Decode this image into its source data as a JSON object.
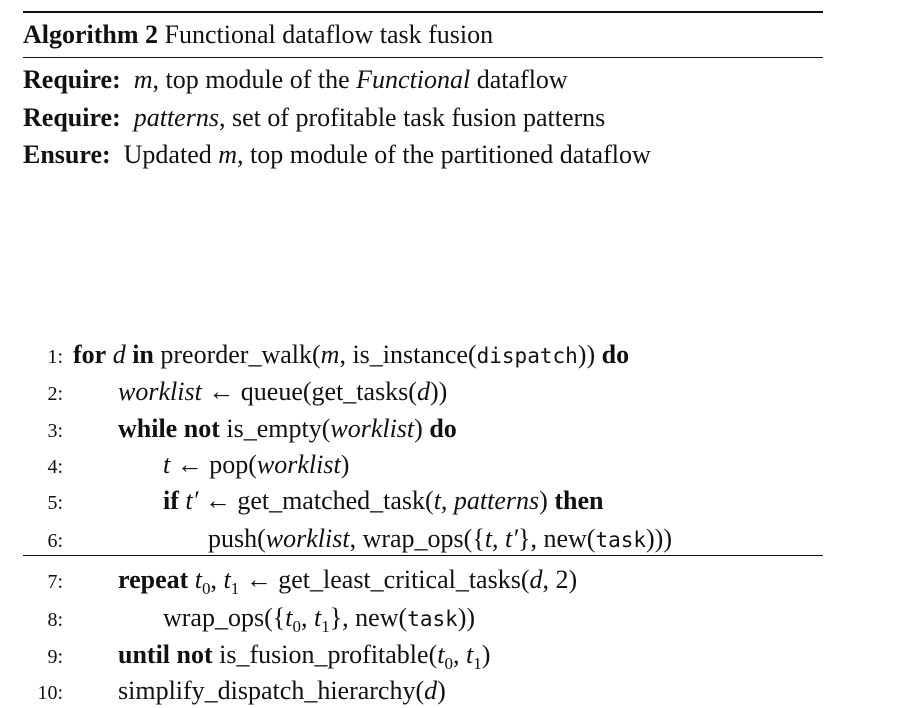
{
  "algorithm": {
    "label": "Algorithm 2",
    "title": "Functional dataflow task fusion"
  },
  "preamble": {
    "require1_kw": "Require:",
    "require1_var": "m",
    "require1_text_a": ", top module of the ",
    "require1_text_em": "Functional",
    "require1_text_b": " dataflow",
    "require2_kw": "Require:",
    "require2_var": "patterns",
    "require2_text": ", set of profitable task fusion patterns",
    "ensure_kw": "Ensure:",
    "ensure_text_a": "Updated ",
    "ensure_var": "m",
    "ensure_text_b": ", top module of the partitioned dataflow"
  },
  "lines": [
    {
      "num": "1:"
    },
    {
      "num": "2:"
    },
    {
      "num": "3:"
    },
    {
      "num": "4:"
    },
    {
      "num": "5:"
    },
    {
      "num": "6:"
    },
    {
      "num": "7:"
    },
    {
      "num": "8:"
    },
    {
      "num": "9:"
    },
    {
      "num": "10:"
    }
  ],
  "tokens": {
    "for": "for",
    "in": "in",
    "do": "do",
    "while": "while",
    "not": "not",
    "if": "if",
    "then": "then",
    "repeat": "repeat",
    "until": "until",
    "d": "d",
    "m": "m",
    "t": "t",
    "t_prime": "t′",
    "t0": "t",
    "t1": "t",
    "sub0": "0",
    "sub1": "1",
    "worklist": "worklist",
    "patterns": "patterns",
    "dispatch": "dispatch",
    "task": "task",
    "l1_a": " preorder_walk(",
    "l1_b": ", is_instance(",
    "l1_c": ")) ",
    "l2_a": " ← queue(get_tasks(",
    "l2_b": "))",
    "l3_a": " is_empty(",
    "l3_b": ") ",
    "l4_a": " ← pop(",
    "l4_b": ")",
    "l5_a": " ← get_matched_task(",
    "l5_comma": ", ",
    "l5_b": ") ",
    "l6_a": "push(",
    "l6_b": ", wrap_ops({",
    "l6_c": ", ",
    "l6_d": "}, new(",
    "l6_e": ")))",
    "l7_comma": ", ",
    "l7_a": " ← get_least_critical_tasks(",
    "l7_b": ", 2)",
    "l8_a": "wrap_ops({",
    "l8_comma": ", ",
    "l8_b": "}, new(",
    "l8_c": "))",
    "l9_a": " is_fusion_profitable(",
    "l9_comma": ", ",
    "l9_b": ")",
    "l10_a": "simplify_dispatch_hierarchy(",
    "l10_b": ")"
  }
}
